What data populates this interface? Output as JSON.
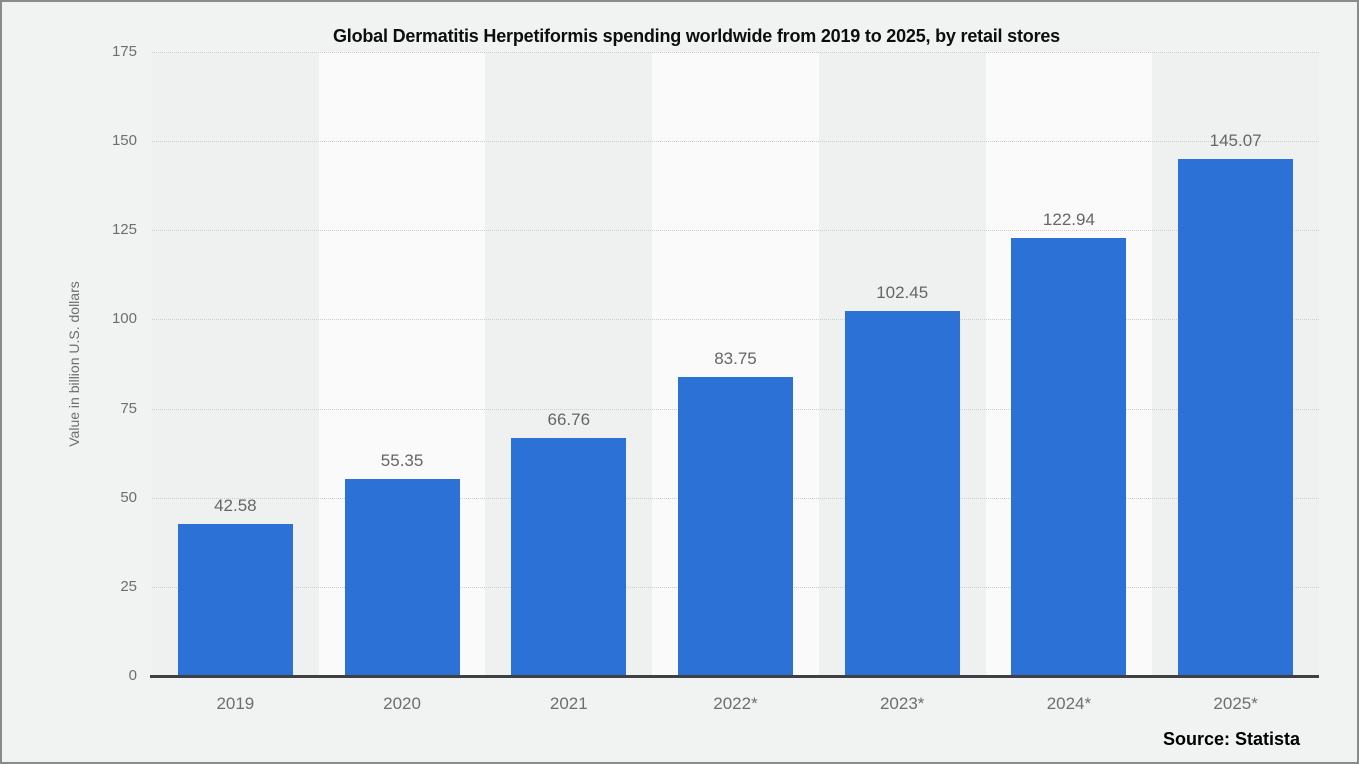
{
  "window": {
    "background_color": "#f1f2f2",
    "border_color": "#8a8a8a"
  },
  "chart_data": {
    "type": "bar",
    "title": "Global Dermatitis Herpetiformis spending worldwide from 2019 to 2025, by retail stores",
    "categories": [
      "2019",
      "2020",
      "2021",
      "2022*",
      "2023*",
      "2024*",
      "2025*"
    ],
    "values": [
      42.58,
      55.35,
      66.76,
      83.75,
      102.45,
      122.94,
      145.07
    ],
    "value_labels": [
      "42.58",
      "55.35",
      "66.76",
      "83.75",
      "102.45",
      "122.94",
      "145.07"
    ],
    "xlabel": "",
    "ylabel": "Value in billion U.S. dollars",
    "ylim": [
      0,
      175
    ],
    "yticks": [
      0,
      25,
      50,
      75,
      100,
      125,
      150,
      175
    ],
    "grid": "horizontal dotted gridlines at each y tick",
    "legend": "none",
    "bar_color": "#2b71d6",
    "band_color_odd_columns": "#eff0f0",
    "band_color_even_columns": "#fafafb",
    "gridline_color": "#cdcdcd",
    "axis_line_color": "#3f4043",
    "label_color": "#666666"
  },
  "source": {
    "label": "Source: Statista"
  }
}
